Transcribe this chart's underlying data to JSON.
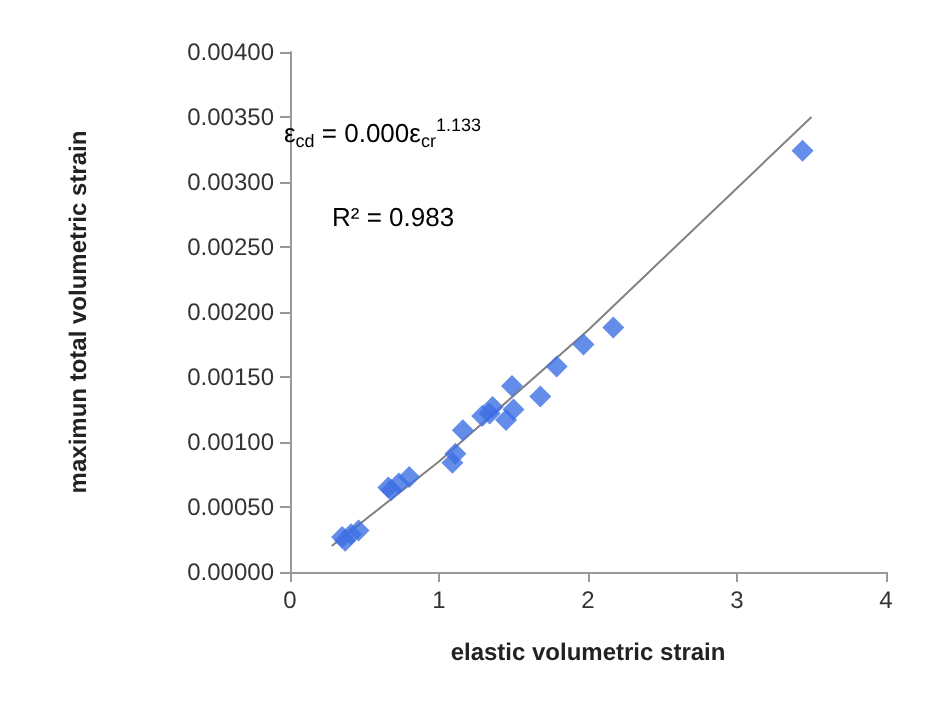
{
  "chart_data": {
    "type": "scatter",
    "xlabel": "elastic volumetric strain",
    "ylabel": "maximun total volumetric strain",
    "xlim": [
      0,
      4
    ],
    "xticks": [
      0,
      1,
      2,
      3,
      4
    ],
    "ylim": [
      0,
      0.004
    ],
    "yticks": [
      {
        "value": 0,
        "label": "0.00000"
      },
      {
        "value": 0.0005,
        "label": "0.00050"
      },
      {
        "value": 0.001,
        "label": "0.00100"
      },
      {
        "value": 0.0015,
        "label": "0.00150"
      },
      {
        "value": 0.002,
        "label": "0.00200"
      },
      {
        "value": 0.0025,
        "label": "0.00250"
      },
      {
        "value": 0.003,
        "label": "0.00300"
      },
      {
        "value": 0.0035,
        "label": "0.00350"
      },
      {
        "value": 0.004,
        "label": "0.00400"
      }
    ],
    "grid": false,
    "annotations": [
      "ε$_{cd}$ = 0.000ε$_{cr}$$^{1.133}$",
      "R² = 0.983"
    ],
    "series": [
      {
        "marker": "diamond",
        "color": "#3d6fe3",
        "x": [
          0.35,
          0.37,
          0.41,
          0.46,
          0.66,
          0.68,
          0.73,
          0.8,
          1.09,
          1.11,
          1.16,
          1.29,
          1.34,
          1.36,
          1.45,
          1.5,
          1.49,
          1.68,
          1.79,
          1.97,
          2.17,
          3.44
        ],
        "values": [
          0.00027,
          0.00024,
          0.00029,
          0.00032,
          0.00065,
          0.00063,
          0.00068,
          0.00073,
          0.00084,
          0.00091,
          0.00109,
          0.0012,
          0.00122,
          0.00127,
          0.00117,
          0.00125,
          0.00143,
          0.00135,
          0.00158,
          0.00175,
          0.00188,
          0.00324
        ]
      },
      {
        "type": "line",
        "marker": "none",
        "color": "#808080",
        "x": [
          0.28,
          1,
          2,
          3.5
        ],
        "values": [
          0.0002,
          0.00085,
          0.00186,
          0.0035
        ]
      }
    ]
  }
}
